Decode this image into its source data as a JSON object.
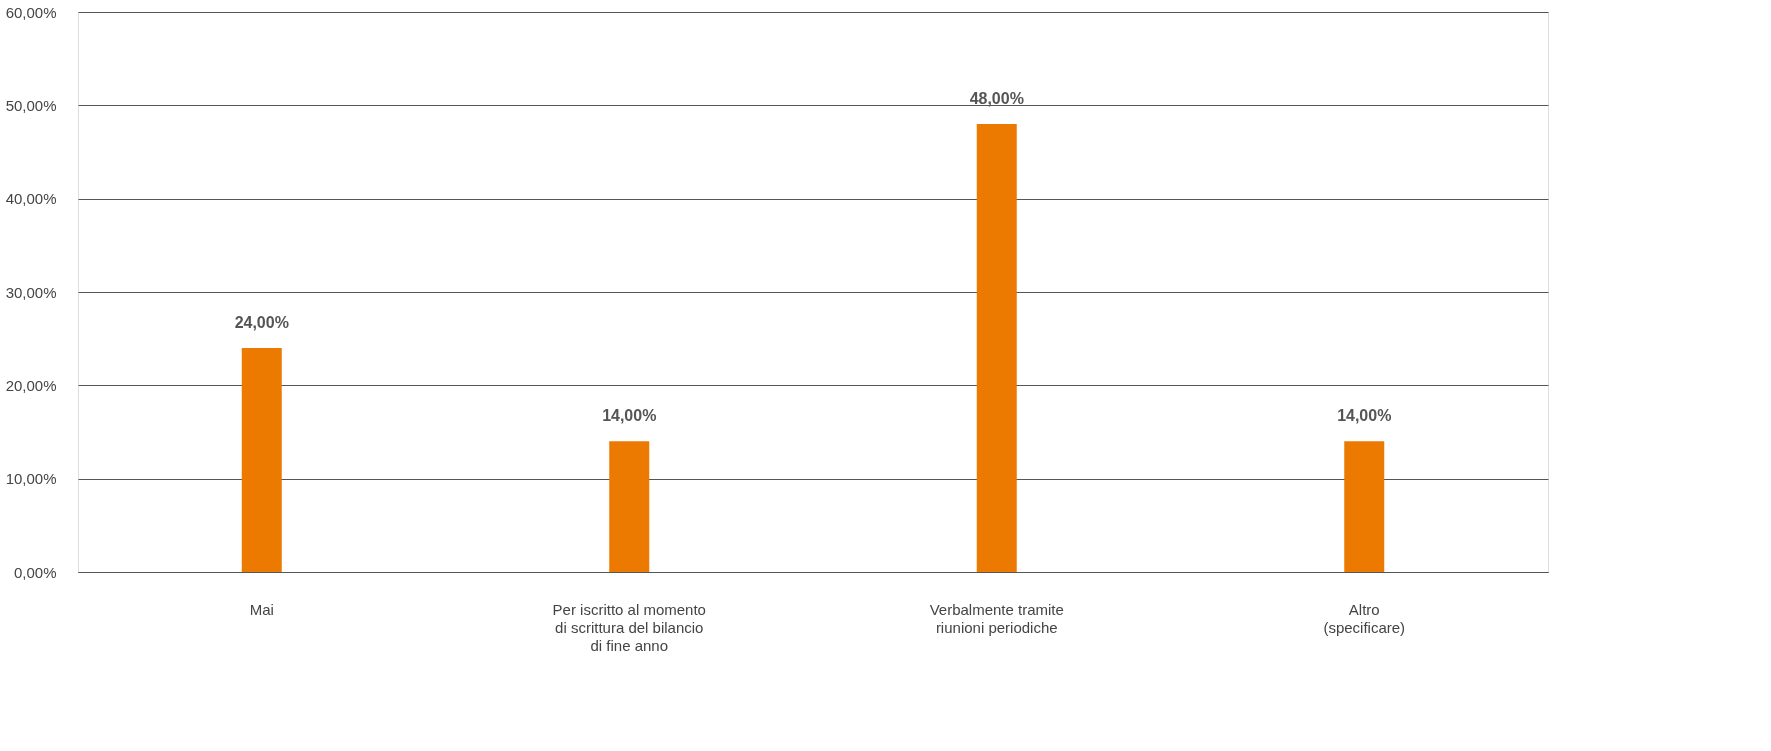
{
  "chart_data": {
    "type": "bar",
    "categories": [
      "Mai",
      "Per iscritto al momento\ndi scrittura del bilancio\ndi fine anno",
      "Verbalmente tramite\nriunioni periodiche",
      "Altro\n(specificare)"
    ],
    "values": [
      24,
      14,
      48,
      14
    ],
    "value_labels": [
      "24,00%",
      "14,00%",
      "48,00%",
      "14,00%"
    ],
    "color": "#ed7a00",
    "ylim": [
      0,
      60
    ],
    "yticks": [
      {
        "value": 0,
        "label": "0,00%"
      },
      {
        "value": 10,
        "label": "10,00%"
      },
      {
        "value": 20,
        "label": "20,00%"
      },
      {
        "value": 30,
        "label": "30,00%"
      },
      {
        "value": 40,
        "label": "40,00%"
      },
      {
        "value": 50,
        "label": "50,00%"
      },
      {
        "value": 60,
        "label": "60,00%"
      }
    ],
    "grid": "y"
  }
}
